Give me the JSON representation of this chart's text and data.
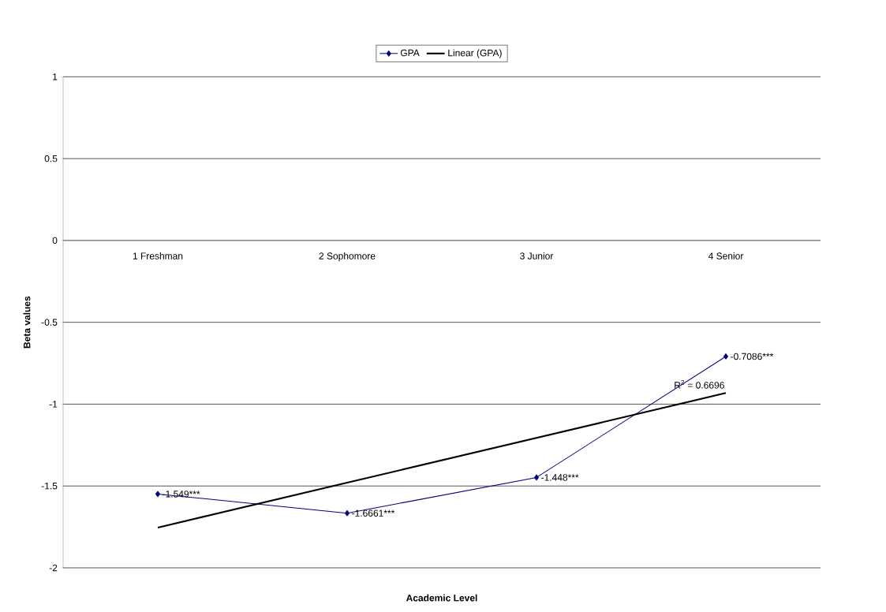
{
  "chart_data": {
    "type": "line",
    "xlabel": "Academic Level",
    "ylabel": "Beta values",
    "categories": [
      "1 Freshman",
      "2 Sophomore",
      "3 Junior",
      "4 Senior"
    ],
    "series": [
      {
        "name": "GPA",
        "color": "#000080",
        "values": [
          -1.549,
          -1.6661,
          -1.448,
          -0.7086
        ],
        "value_labels": [
          "-1.549***",
          "-1.6661***",
          "-1.448***",
          "-0.7086***"
        ],
        "marker": "diamond",
        "line_style": "solid"
      },
      {
        "name": "Linear (GPA)",
        "type": "line",
        "color": "#000000",
        "values": [
          -1.754,
          -1.48,
          -1.206,
          -0.932
        ],
        "marker": "none",
        "line_style": "solid"
      }
    ],
    "annotations": [
      "R$^{2}$ = 0.6696"
    ],
    "ylim": [
      -2,
      1
    ],
    "yticks": [
      -2,
      -1.5,
      -1,
      -0.5,
      0,
      0.5,
      1
    ],
    "grid": "y",
    "legend": "top"
  }
}
